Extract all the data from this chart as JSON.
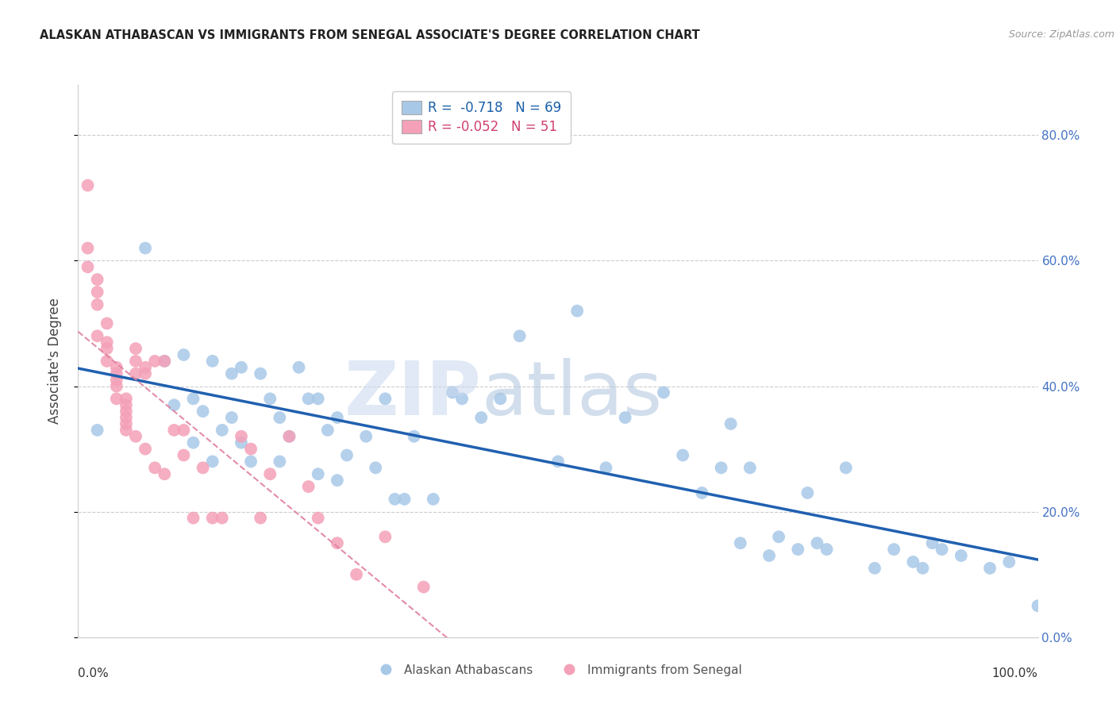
{
  "title": "ALASKAN ATHABASCAN VS IMMIGRANTS FROM SENEGAL ASSOCIATE'S DEGREE CORRELATION CHART",
  "source": "Source: ZipAtlas.com",
  "ylabel": "Associate's Degree",
  "legend_blue_r": "-0.718",
  "legend_blue_n": "69",
  "legend_pink_r": "-0.052",
  "legend_pink_n": "51",
  "legend_blue_label": "Alaskan Athabascans",
  "legend_pink_label": "Immigrants from Senegal",
  "blue_color": "#a8c8e8",
  "pink_color": "#f4a0b8",
  "blue_line_color": "#2060b0",
  "pink_line_color": "#e080a0",
  "blue_r_color": "#1a5fa8",
  "pink_r_color": "#d04070",
  "right_tick_color": "#4472c4",
  "xlim": [
    0.0,
    1.0
  ],
  "ylim": [
    0.0,
    0.88
  ],
  "ytick_vals": [
    0.0,
    0.2,
    0.4,
    0.6,
    0.8
  ],
  "ytick_labels": [
    "0.0%",
    "20.0%",
    "40.0%",
    "60.0%",
    "80.0%"
  ],
  "blue_x": [
    0.02,
    0.07,
    0.09,
    0.1,
    0.11,
    0.12,
    0.12,
    0.13,
    0.14,
    0.14,
    0.15,
    0.16,
    0.16,
    0.17,
    0.17,
    0.18,
    0.19,
    0.2,
    0.21,
    0.21,
    0.22,
    0.23,
    0.24,
    0.25,
    0.25,
    0.26,
    0.27,
    0.27,
    0.28,
    0.3,
    0.31,
    0.32,
    0.33,
    0.34,
    0.35,
    0.37,
    0.39,
    0.4,
    0.42,
    0.44,
    0.46,
    0.5,
    0.52,
    0.55,
    0.57,
    0.61,
    0.63,
    0.65,
    0.67,
    0.68,
    0.69,
    0.7,
    0.72,
    0.73,
    0.75,
    0.76,
    0.77,
    0.78,
    0.8,
    0.83,
    0.85,
    0.87,
    0.88,
    0.89,
    0.9,
    0.92,
    0.95,
    0.97,
    1.0
  ],
  "blue_y": [
    0.33,
    0.62,
    0.44,
    0.37,
    0.45,
    0.38,
    0.31,
    0.36,
    0.44,
    0.28,
    0.33,
    0.42,
    0.35,
    0.43,
    0.31,
    0.28,
    0.42,
    0.38,
    0.35,
    0.28,
    0.32,
    0.43,
    0.38,
    0.38,
    0.26,
    0.33,
    0.35,
    0.25,
    0.29,
    0.32,
    0.27,
    0.38,
    0.22,
    0.22,
    0.32,
    0.22,
    0.39,
    0.38,
    0.35,
    0.38,
    0.48,
    0.28,
    0.52,
    0.27,
    0.35,
    0.39,
    0.29,
    0.23,
    0.27,
    0.34,
    0.15,
    0.27,
    0.13,
    0.16,
    0.14,
    0.23,
    0.15,
    0.14,
    0.27,
    0.11,
    0.14,
    0.12,
    0.11,
    0.15,
    0.14,
    0.13,
    0.11,
    0.12,
    0.05
  ],
  "pink_x": [
    0.01,
    0.01,
    0.01,
    0.02,
    0.02,
    0.02,
    0.02,
    0.03,
    0.03,
    0.03,
    0.03,
    0.04,
    0.04,
    0.04,
    0.04,
    0.04,
    0.05,
    0.05,
    0.05,
    0.05,
    0.05,
    0.05,
    0.06,
    0.06,
    0.06,
    0.06,
    0.07,
    0.07,
    0.07,
    0.08,
    0.08,
    0.09,
    0.09,
    0.1,
    0.11,
    0.11,
    0.12,
    0.13,
    0.14,
    0.15,
    0.17,
    0.18,
    0.19,
    0.2,
    0.22,
    0.24,
    0.25,
    0.27,
    0.29,
    0.32,
    0.36
  ],
  "pink_y": [
    0.72,
    0.62,
    0.59,
    0.57,
    0.55,
    0.53,
    0.48,
    0.5,
    0.47,
    0.46,
    0.44,
    0.43,
    0.42,
    0.41,
    0.4,
    0.38,
    0.38,
    0.37,
    0.36,
    0.35,
    0.34,
    0.33,
    0.46,
    0.44,
    0.42,
    0.32,
    0.43,
    0.42,
    0.3,
    0.44,
    0.27,
    0.44,
    0.26,
    0.33,
    0.33,
    0.29,
    0.19,
    0.27,
    0.19,
    0.19,
    0.32,
    0.3,
    0.19,
    0.26,
    0.32,
    0.24,
    0.19,
    0.15,
    0.1,
    0.16,
    0.08
  ]
}
